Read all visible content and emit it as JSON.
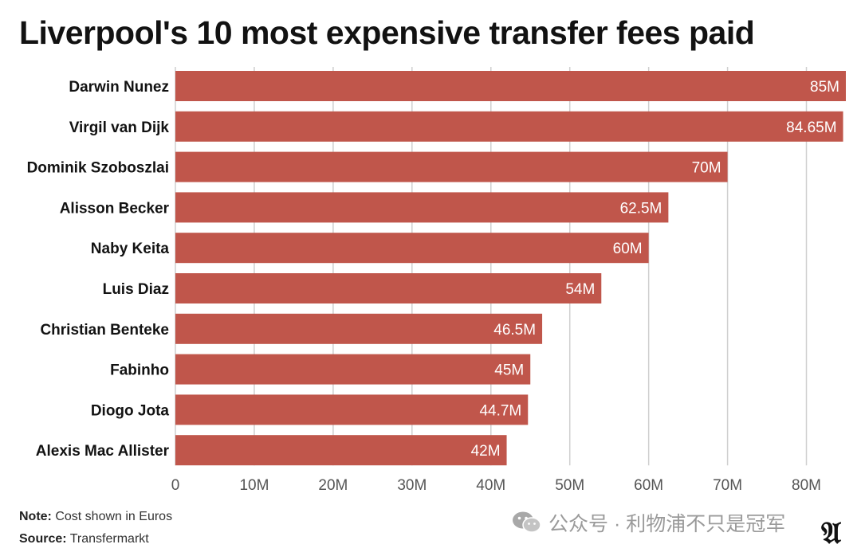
{
  "title": "Liverpool's 10 most expensive transfer fees paid",
  "note_label": "Note:",
  "note_text": " Cost shown in Euros",
  "source_label": "Source:",
  "source_text": " Transfermarkt",
  "watermark_text": "公众号 · 利物浦不只是冠军",
  "logo_text": "A",
  "colors": {
    "bar": "#c0564b",
    "bar_label": "#ffffff",
    "grid": "#cfcfcf",
    "text": "#121212",
    "tick": "#555555"
  },
  "chart_data": {
    "type": "bar",
    "orientation": "horizontal",
    "categories": [
      "Darwin Nunez",
      "Virgil van Dijk",
      "Dominik Szoboszlai",
      "Alisson Becker",
      "Naby Keita",
      "Luis Diaz",
      "Christian Benteke",
      "Fabinho",
      "Diogo Jota",
      "Alexis Mac Allister"
    ],
    "values": [
      85,
      84.65,
      70,
      62.5,
      60,
      54,
      46.5,
      45,
      44.7,
      42
    ],
    "value_labels": [
      "85M",
      "84.65M",
      "70M",
      "62.5M",
      "60M",
      "54M",
      "46.5M",
      "45M",
      "44.7M",
      "42M"
    ],
    "x_ticks": [
      0,
      10,
      20,
      30,
      40,
      50,
      60,
      70,
      80
    ],
    "x_tick_labels": [
      "0",
      "10M",
      "20M",
      "30M",
      "40M",
      "50M",
      "60M",
      "70M",
      "80M"
    ],
    "xlim": [
      0,
      85
    ],
    "grid": true,
    "xlabel": "",
    "ylabel": ""
  }
}
